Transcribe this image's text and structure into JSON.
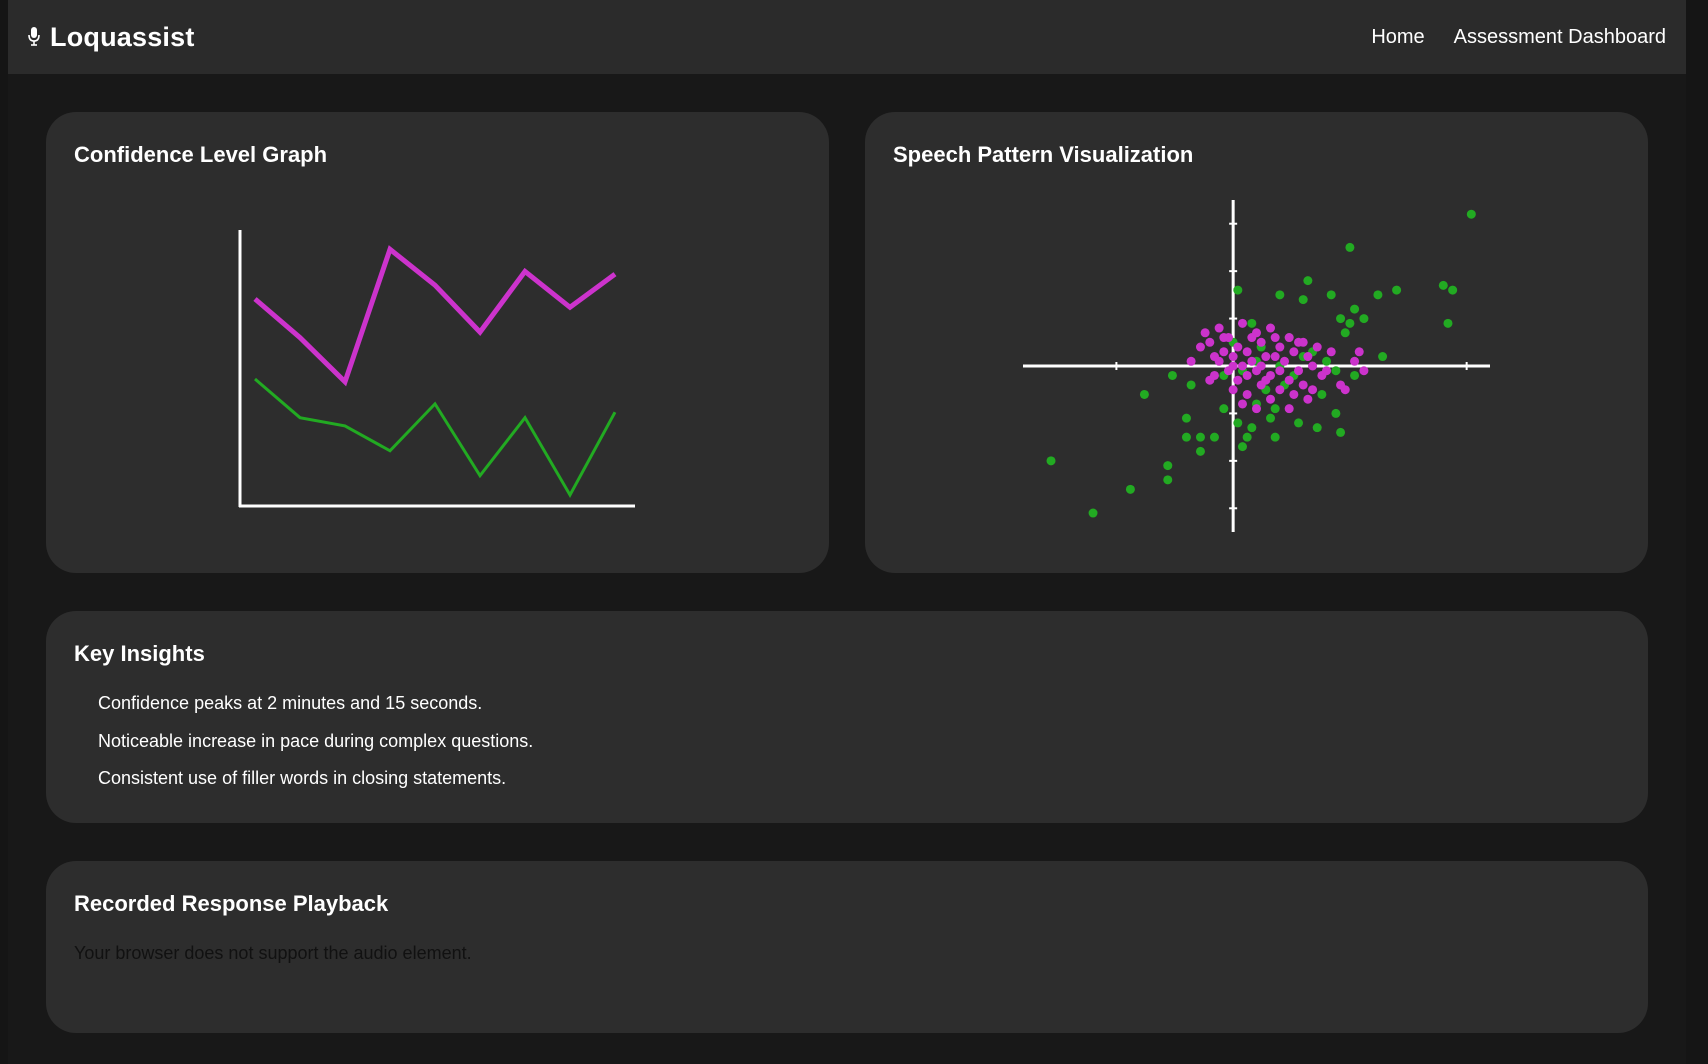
{
  "app": {
    "name": "Loquassist",
    "icon": "microphone-icon"
  },
  "nav": {
    "links": [
      "Home",
      "Assessment Dashboard"
    ]
  },
  "confidence_card": {
    "title": "Confidence Level Graph"
  },
  "speech_card": {
    "title": "Speech Pattern Visualization"
  },
  "insights": {
    "title": "Key Insights",
    "items": [
      "Confidence peaks at 2 minutes and 15 seconds.",
      "Noticeable increase in pace during complex questions.",
      "Consistent use of filler words in closing statements."
    ]
  },
  "playback": {
    "title": "Recorded Response Playback",
    "fallback_text": "Your browser does not support the audio element."
  },
  "colors": {
    "page_bg": "#181818",
    "card_bg": "#2d2d2d",
    "navbar_bg": "#2b2b2b",
    "magenta": "#cc33cc",
    "green": "#22aa22",
    "axis": "#ffffff"
  },
  "chart_data": [
    {
      "type": "line",
      "title": "Confidence Level Graph",
      "x": [
        1,
        2,
        3,
        4,
        5,
        6,
        7,
        8,
        9
      ],
      "ylim": [
        0,
        100
      ],
      "grid": false,
      "series": [
        {
          "color": "#cc33cc",
          "values": [
            75,
            61,
            45,
            93,
            80,
            63,
            85,
            72,
            84
          ]
        },
        {
          "color": "#22aa22",
          "values": [
            46,
            32,
            29,
            20,
            37,
            11,
            32,
            4,
            34
          ]
        }
      ]
    },
    {
      "type": "scatter",
      "title": "Speech Pattern Visualization",
      "xlim": [
        -4.5,
        5.5
      ],
      "ylim": [
        -3.5,
        3.5
      ],
      "grid": false,
      "axes": "centered",
      "series": [
        {
          "color": "#22aa22",
          "points": [
            [
              5.1,
              3.2
            ],
            [
              2.5,
              2.5
            ],
            [
              4.5,
              1.7
            ],
            [
              4.7,
              1.6
            ],
            [
              1.6,
              1.8
            ],
            [
              2.1,
              1.5
            ],
            [
              1.5,
              1.4
            ],
            [
              1.0,
              1.5
            ],
            [
              3.5,
              1.6
            ],
            [
              3.1,
              1.5
            ],
            [
              2.6,
              1.2
            ],
            [
              2.3,
              1.0
            ],
            [
              2.5,
              0.9
            ],
            [
              2.8,
              1.0
            ],
            [
              4.6,
              0.9
            ],
            [
              3.2,
              0.2
            ],
            [
              2.4,
              0.7
            ],
            [
              1.0,
              0.0
            ],
            [
              1.5,
              0.2
            ],
            [
              2.2,
              -0.1
            ],
            [
              2.6,
              -0.2
            ],
            [
              0.2,
              -0.1
            ],
            [
              0.5,
              0.1
            ],
            [
              -0.2,
              -0.2
            ],
            [
              -1.3,
              -0.2
            ],
            [
              -0.9,
              -0.4
            ],
            [
              -1.9,
              -0.6
            ],
            [
              -1.0,
              -1.1
            ],
            [
              -0.2,
              -0.9
            ],
            [
              0.1,
              -1.2
            ],
            [
              0.4,
              -1.3
            ],
            [
              0.8,
              -1.1
            ],
            [
              1.4,
              -1.2
            ],
            [
              1.8,
              -1.3
            ],
            [
              2.2,
              -1.0
            ],
            [
              2.3,
              -1.4
            ],
            [
              0.9,
              -1.5
            ],
            [
              0.3,
              -1.5
            ],
            [
              0.2,
              -1.7
            ],
            [
              -0.4,
              -1.5
            ],
            [
              -0.7,
              -1.5
            ],
            [
              -1.0,
              -1.5
            ],
            [
              -0.7,
              -1.8
            ],
            [
              -1.4,
              -2.1
            ],
            [
              -1.4,
              -2.4
            ],
            [
              -2.2,
              -2.6
            ],
            [
              -3.9,
              -2.0
            ],
            [
              -3.0,
              -3.1
            ],
            [
              0.1,
              1.6
            ],
            [
              0.4,
              0.9
            ],
            [
              1.2,
              0.6
            ],
            [
              1.7,
              0.3
            ],
            [
              2.0,
              0.1
            ],
            [
              0.7,
              -0.5
            ],
            [
              1.1,
              -0.4
            ],
            [
              0.9,
              -0.9
            ],
            [
              0.5,
              -0.8
            ],
            [
              0.0,
              0.5
            ],
            [
              0.6,
              0.4
            ],
            [
              1.3,
              -0.2
            ],
            [
              1.9,
              -0.6
            ]
          ]
        },
        {
          "color": "#cc33cc",
          "points": [
            [
              -0.3,
              0.8
            ],
            [
              -0.1,
              0.6
            ],
            [
              0.2,
              0.9
            ],
            [
              0.5,
              0.7
            ],
            [
              0.8,
              0.8
            ],
            [
              1.2,
              0.6
            ],
            [
              1.5,
              0.5
            ],
            [
              1.8,
              0.4
            ],
            [
              2.1,
              0.3
            ],
            [
              2.7,
              0.3
            ],
            [
              -0.5,
              0.5
            ],
            [
              -0.4,
              0.2
            ],
            [
              -0.2,
              0.3
            ],
            [
              0.1,
              0.4
            ],
            [
              0.3,
              0.3
            ],
            [
              0.6,
              0.5
            ],
            [
              0.9,
              0.2
            ],
            [
              1.0,
              0.4
            ],
            [
              1.3,
              0.3
            ],
            [
              1.6,
              0.2
            ],
            [
              -0.6,
              0.7
            ],
            [
              -0.3,
              0.1
            ],
            [
              0.0,
              0.2
            ],
            [
              0.2,
              0.0
            ],
            [
              0.4,
              0.1
            ],
            [
              0.7,
              0.2
            ],
            [
              1.1,
              0.1
            ],
            [
              1.4,
              -0.1
            ],
            [
              1.7,
              0.0
            ],
            [
              2.0,
              -0.1
            ],
            [
              -0.9,
              0.1
            ],
            [
              -0.4,
              -0.2
            ],
            [
              -0.1,
              -0.1
            ],
            [
              0.1,
              -0.3
            ],
            [
              0.3,
              -0.2
            ],
            [
              0.5,
              -0.1
            ],
            [
              0.8,
              -0.2
            ],
            [
              1.2,
              -0.3
            ],
            [
              1.5,
              -0.4
            ],
            [
              1.9,
              -0.2
            ],
            [
              0.0,
              -0.5
            ],
            [
              0.3,
              -0.6
            ],
            [
              0.6,
              -0.4
            ],
            [
              1.0,
              -0.5
            ],
            [
              1.3,
              -0.6
            ],
            [
              1.7,
              -0.5
            ],
            [
              2.3,
              -0.4
            ],
            [
              0.2,
              -0.8
            ],
            [
              0.5,
              -0.9
            ],
            [
              0.8,
              -0.7
            ],
            [
              1.6,
              -0.7
            ],
            [
              2.4,
              -0.5
            ],
            [
              -0.2,
              0.6
            ],
            [
              0.4,
              0.6
            ],
            [
              0.9,
              0.6
            ],
            [
              -0.7,
              0.4
            ],
            [
              0.0,
              0.0
            ],
            [
              0.6,
              0.0
            ],
            [
              1.4,
              0.5
            ],
            [
              2.6,
              0.1
            ],
            [
              2.8,
              -0.1
            ],
            [
              1.2,
              -0.9
            ],
            [
              0.7,
              -0.3
            ],
            [
              -0.5,
              -0.3
            ],
            [
              1.0,
              -0.1
            ]
          ]
        }
      ]
    }
  ]
}
